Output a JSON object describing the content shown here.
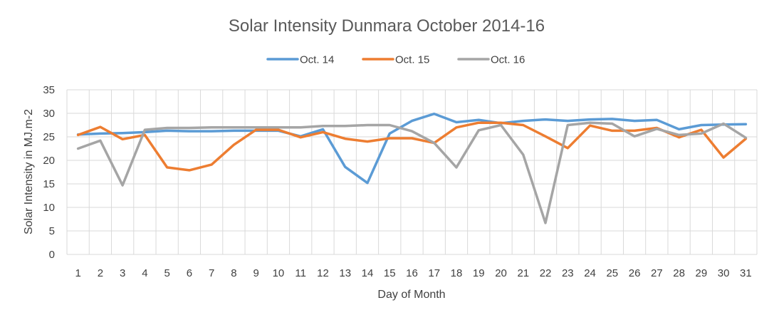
{
  "chart_data": {
    "type": "line",
    "title": "Solar Intensity Dunmara October 2014-16",
    "xlabel": "Day of Month",
    "ylabel": "Solar Intensity in MJ.m-2",
    "ylim": [
      0,
      35
    ],
    "yticks": [
      "0",
      "5",
      "10",
      "15",
      "20",
      "25",
      "30",
      "35"
    ],
    "grid": true,
    "legend_position": "top",
    "categories": [
      "1",
      "2",
      "3",
      "4",
      "5",
      "6",
      "7",
      "8",
      "9",
      "10",
      "11",
      "12",
      "13",
      "14",
      "15",
      "16",
      "17",
      "18",
      "19",
      "20",
      "21",
      "22",
      "23",
      "24",
      "25",
      "26",
      "27",
      "28",
      "29",
      "30",
      "31"
    ],
    "series": [
      {
        "name": "Oct. 14",
        "color": "#5B9BD5",
        "values": [
          25.5,
          25.7,
          25.8,
          26.0,
          26.3,
          26.2,
          26.2,
          26.3,
          26.3,
          26.3,
          25.1,
          26.6,
          18.6,
          15.2,
          25.7,
          28.4,
          29.9,
          28.1,
          28.6,
          27.9,
          28.4,
          28.7,
          28.4,
          28.7,
          28.8,
          28.4,
          28.6,
          26.6,
          27.5,
          27.6,
          27.7
        ]
      },
      {
        "name": "Oct. 15",
        "color": "#ED7D31",
        "values": [
          25.4,
          27.1,
          24.5,
          25.4,
          18.5,
          17.9,
          19.1,
          23.3,
          26.5,
          26.5,
          24.9,
          26.0,
          24.6,
          24.0,
          24.7,
          24.7,
          23.7,
          27.0,
          28.0,
          28.0,
          27.5,
          25.1,
          22.6,
          27.4,
          26.3,
          26.3,
          26.9,
          24.9,
          26.5,
          20.6,
          24.6
        ]
      },
      {
        "name": "Oct. 16",
        "color": "#A5A5A5",
        "values": [
          22.5,
          24.2,
          14.7,
          26.5,
          26.9,
          26.9,
          27.0,
          27.0,
          27.0,
          27.0,
          27.0,
          27.3,
          27.3,
          27.5,
          27.5,
          26.2,
          23.7,
          18.5,
          26.4,
          27.5,
          21.2,
          6.7,
          27.5,
          28.0,
          27.8,
          25.1,
          26.7,
          25.4,
          25.7,
          27.8,
          24.8
        ]
      }
    ]
  }
}
